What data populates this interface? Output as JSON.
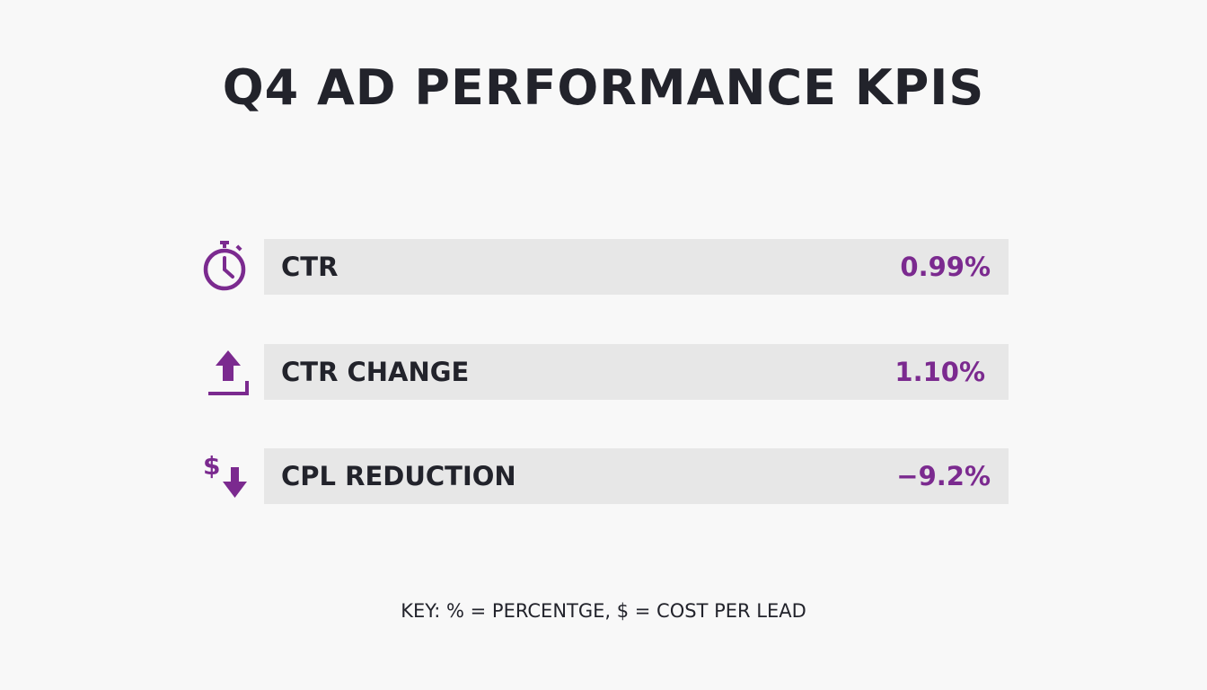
{
  "header": {
    "title": "Q4 AD PERFORMANCE KPIS"
  },
  "kpis": [
    {
      "icon": "stopwatch-icon",
      "label": "CTR",
      "value": "0.99%"
    },
    {
      "icon": "upload-arrow-icon",
      "label": "CTR CHANGE",
      "value": "1.10%"
    },
    {
      "icon": "dollar-down-arrow-icon",
      "label": "CPL REDUCTION",
      "value": "−9.2%"
    }
  ],
  "footer": {
    "key_text": "KEY: % = PERCENTGE, $ = COST PER LEAD"
  },
  "colors": {
    "accent": "#7b2a8f",
    "text": "#22232b",
    "bar": "#e7e7e7",
    "background": "#f8f8f8"
  }
}
